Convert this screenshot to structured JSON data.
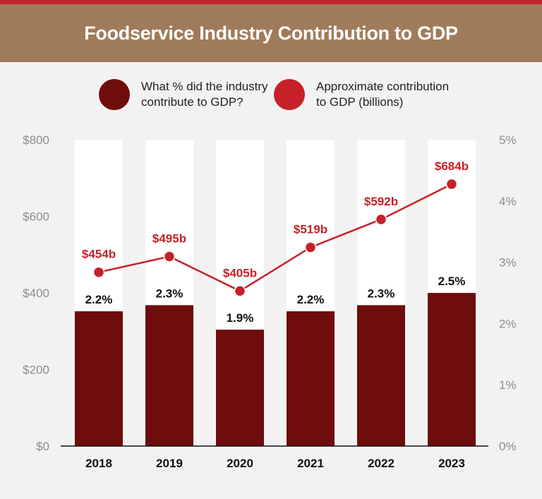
{
  "header": {
    "title": "Foodservice Industry Contribution to GDP"
  },
  "colors": {
    "bar": "#6e0d0c",
    "line": "#c62128",
    "header_bg": "#a07b5b",
    "top_stripe": "#c8232c"
  },
  "legend": {
    "bar_label_line1": "What % did the industry",
    "bar_label_line2": "contribute to GDP?",
    "line_label_line1": "Approximate contribution",
    "line_label_line2": "to GDP (billions)"
  },
  "chart_data": {
    "type": "bar+line",
    "title": "Foodservice Industry Contribution to GDP",
    "categories": [
      "2018",
      "2019",
      "2020",
      "2021",
      "2022",
      "2023"
    ],
    "series": [
      {
        "name": "What % did the industry contribute to GDP?",
        "type": "bar",
        "axis": "right",
        "values": [
          2.2,
          2.3,
          1.9,
          2.2,
          2.3,
          2.5
        ],
        "labels": [
          "2.2%",
          "2.3%",
          "1.9%",
          "2.2%",
          "2.3%",
          "2.5%"
        ]
      },
      {
        "name": "Approximate contribution to GDP (billions)",
        "type": "line",
        "axis": "left",
        "values": [
          454,
          495,
          405,
          519,
          592,
          684
        ],
        "labels": [
          "$454b",
          "$495b",
          "$405b",
          "$519b",
          "$592b",
          "$684b"
        ]
      }
    ],
    "left_axis": {
      "ylim": [
        0,
        800
      ],
      "ticks": [
        "$0",
        "$200",
        "$400",
        "$600",
        "$800"
      ],
      "tick_values": [
        0,
        200,
        400,
        600,
        800
      ]
    },
    "right_axis": {
      "ylim": [
        0,
        5
      ],
      "ticks": [
        "0%",
        "1%",
        "2%",
        "3%",
        "4%",
        "5%"
      ],
      "tick_values": [
        0,
        1,
        2,
        3,
        4,
        5
      ]
    },
    "legend_position": "top"
  }
}
